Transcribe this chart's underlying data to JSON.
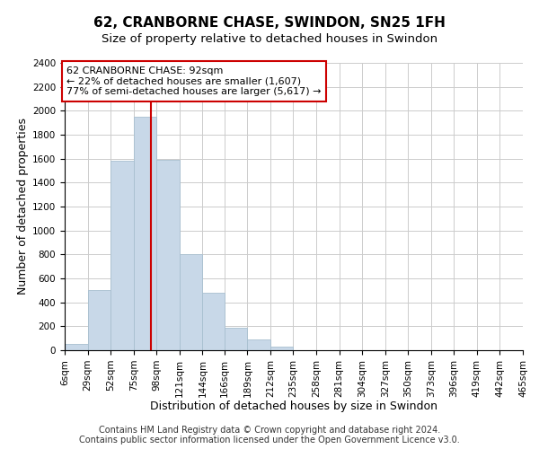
{
  "title": "62, CRANBORNE CHASE, SWINDON, SN25 1FH",
  "subtitle": "Size of property relative to detached houses in Swindon",
  "xlabel": "Distribution of detached houses by size in Swindon",
  "ylabel": "Number of detached properties",
  "footer_line1": "Contains HM Land Registry data © Crown copyright and database right 2024.",
  "footer_line2": "Contains public sector information licensed under the Open Government Licence v3.0.",
  "bin_edges": [
    6,
    29,
    52,
    75,
    98,
    121,
    144,
    166,
    189,
    212,
    235,
    258,
    281,
    304,
    327,
    350,
    373,
    396,
    419,
    442,
    465
  ],
  "bin_labels": [
    "6sqm",
    "29sqm",
    "52sqm",
    "75sqm",
    "98sqm",
    "121sqm",
    "144sqm",
    "166sqm",
    "189sqm",
    "212sqm",
    "235sqm",
    "258sqm",
    "281sqm",
    "304sqm",
    "327sqm",
    "350sqm",
    "373sqm",
    "396sqm",
    "419sqm",
    "442sqm",
    "465sqm"
  ],
  "bar_heights": [
    50,
    500,
    1580,
    1950,
    1590,
    800,
    480,
    190,
    90,
    30,
    0,
    0,
    0,
    0,
    0,
    0,
    0,
    0,
    0,
    0
  ],
  "bar_color": "#c8d8e8",
  "bar_edgecolor": "#a8bfd0",
  "redline_x": 92,
  "annotation_line1": "62 CRANBORNE CHASE: 92sqm",
  "annotation_line2": "← 22% of detached houses are smaller (1,607)",
  "annotation_line3": "77% of semi-detached houses are larger (5,617) →",
  "annotation_box_edgecolor": "#cc0000",
  "redline_color": "#cc0000",
  "ylim": [
    0,
    2400
  ],
  "yticks": [
    0,
    200,
    400,
    600,
    800,
    1000,
    1200,
    1400,
    1600,
    1800,
    2000,
    2200,
    2400
  ],
  "background_color": "#ffffff",
  "grid_color": "#cccccc",
  "title_fontsize": 11,
  "subtitle_fontsize": 9.5,
  "label_fontsize": 9,
  "tick_fontsize": 7.5,
  "annotation_fontsize": 8,
  "footer_fontsize": 7
}
